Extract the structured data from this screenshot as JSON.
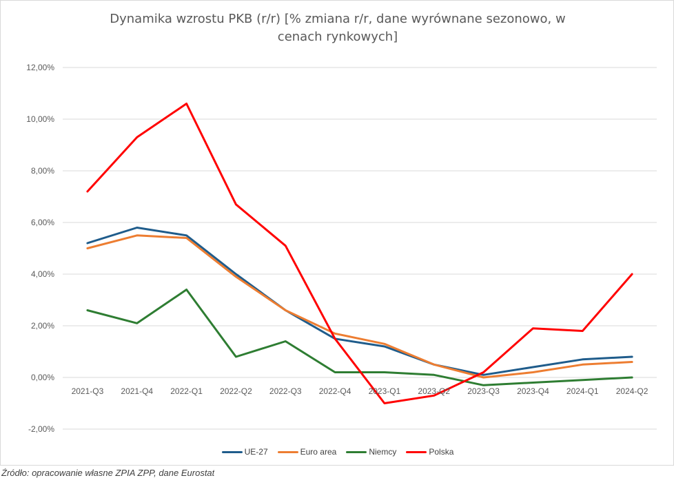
{
  "chart_data": {
    "type": "line",
    "title_lines": [
      "Dynamika wzrostu PKB (r/r) [% zmiana r/r, dane wyrównane sezonowo, w",
      "cenach rynkowych]"
    ],
    "categories": [
      "2021-Q3",
      "2021-Q4",
      "2022-Q1",
      "2022-Q2",
      "2022-Q3",
      "2022-Q4",
      "2023-Q1",
      "2023-Q2",
      "2023-Q3",
      "2023-Q4",
      "2024-Q1",
      "2024-Q2"
    ],
    "ylim": [
      -2,
      12
    ],
    "yticks": [
      -2,
      0,
      2,
      4,
      6,
      8,
      10,
      12
    ],
    "ytick_labels": [
      "-2,00%",
      "0,00%",
      "2,00%",
      "4,00%",
      "6,00%",
      "8,00%",
      "10,00%",
      "12,00%"
    ],
    "grid": true,
    "legend_position": "bottom",
    "series": [
      {
        "name": "UE-27",
        "color": "#1f5c8b",
        "values": [
          5.2,
          5.8,
          5.5,
          4.0,
          2.6,
          1.5,
          1.2,
          0.5,
          0.1,
          0.4,
          0.7,
          0.8
        ]
      },
      {
        "name": "Euro area",
        "color": "#ed7d31",
        "values": [
          5.0,
          5.5,
          5.4,
          3.9,
          2.6,
          1.7,
          1.3,
          0.5,
          0.0,
          0.2,
          0.5,
          0.6
        ]
      },
      {
        "name": "Niemcy",
        "color": "#2e7d32",
        "values": [
          2.6,
          2.1,
          3.4,
          0.8,
          1.4,
          0.2,
          0.2,
          0.1,
          -0.3,
          -0.2,
          -0.1,
          0.0
        ]
      },
      {
        "name": "Polska",
        "color": "#ff0000",
        "values": [
          7.2,
          9.3,
          10.6,
          6.7,
          5.1,
          1.5,
          -1.0,
          -0.7,
          0.2,
          1.9,
          1.8,
          4.0
        ]
      }
    ]
  },
  "source_note": "Źródło: opracowanie własne ZPIA ZPP, dane Eurostat"
}
